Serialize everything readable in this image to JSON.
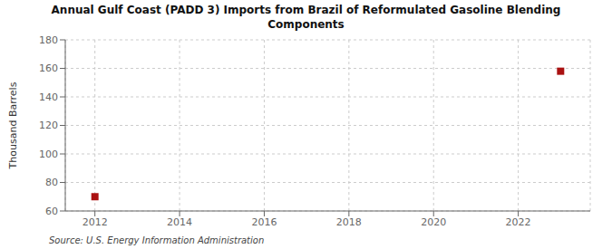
{
  "chart_data": {
    "type": "scatter",
    "title": "Annual Gulf Coast (PADD 3) Imports from Brazil of Reformulated Gasoline Blending\nComponents",
    "ylabel": "Thousand Barrels",
    "source": "Source: U.S. Energy Information Administration",
    "x": [
      2012,
      2023
    ],
    "values": [
      70,
      158
    ],
    "color": "#aa1111",
    "marker": "square",
    "xlim": [
      2011.3,
      2023.7
    ],
    "ylim": [
      60,
      180
    ],
    "xticks": [
      2012,
      2014,
      2016,
      2018,
      2020,
      2022
    ],
    "yticks": [
      60,
      80,
      100,
      120,
      140,
      160,
      180
    ],
    "grid": true
  }
}
